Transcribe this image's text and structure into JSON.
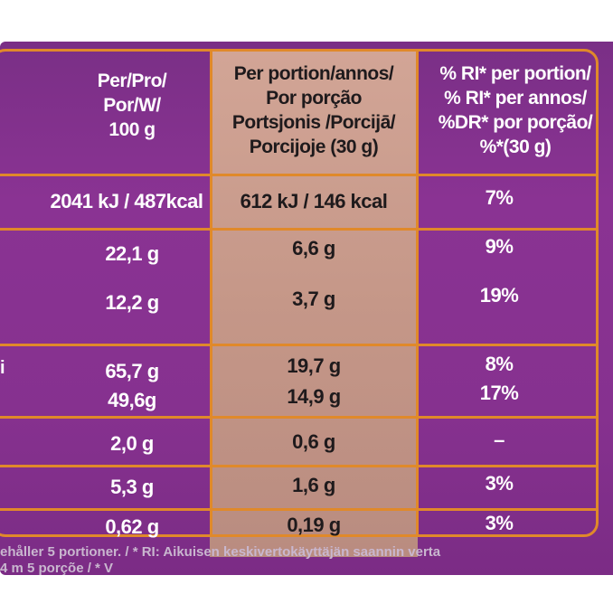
{
  "header": {
    "col1": [
      "Per/Pro/",
      "Por/W/",
      "100 g"
    ],
    "col2": [
      "Per portion/annos/",
      "Por porção",
      "Portsjonis /Porcijā/",
      "Porcijoje (30 g)"
    ],
    "col3": [
      "% RI* per portion/",
      "% RI* per annos/",
      "%DR* por porção/",
      "%*(30 g)"
    ]
  },
  "rows": [
    {
      "per100": "2041 kJ / 487kcal",
      "portion": "612 kJ / 146 kcal",
      "ri": "7%"
    },
    {
      "per100": "22,1 g",
      "portion": "6,6 g",
      "ri": "9%"
    },
    {
      "per100": "12,2 g",
      "portion": "3,7 g",
      "ri": "19%"
    },
    {
      "per100": "65,7 g",
      "portion": "19,7 g",
      "ri": "8%"
    },
    {
      "per100": "49,6g",
      "portion": "14,9 g",
      "ri": "17%"
    },
    {
      "per100": "2,0 g",
      "portion": "0,6 g",
      "ri": "–"
    },
    {
      "per100": "5,3 g",
      "portion": "1,6 g",
      "ri": "3%"
    },
    {
      "per100": "0,62 g",
      "portion": "0,19 g",
      "ri": "3%"
    }
  ],
  "edge_letter": "i",
  "footer": {
    "line1": "ehåller 5 portioner. / * RI: Aikuisen keskivertokäyttäjän saannin verta",
    "line2": "4 m 5 porçõe / * V"
  },
  "colors": {
    "purple": "#86318f",
    "orange_line": "#e0892a",
    "beige": "#c59788"
  }
}
